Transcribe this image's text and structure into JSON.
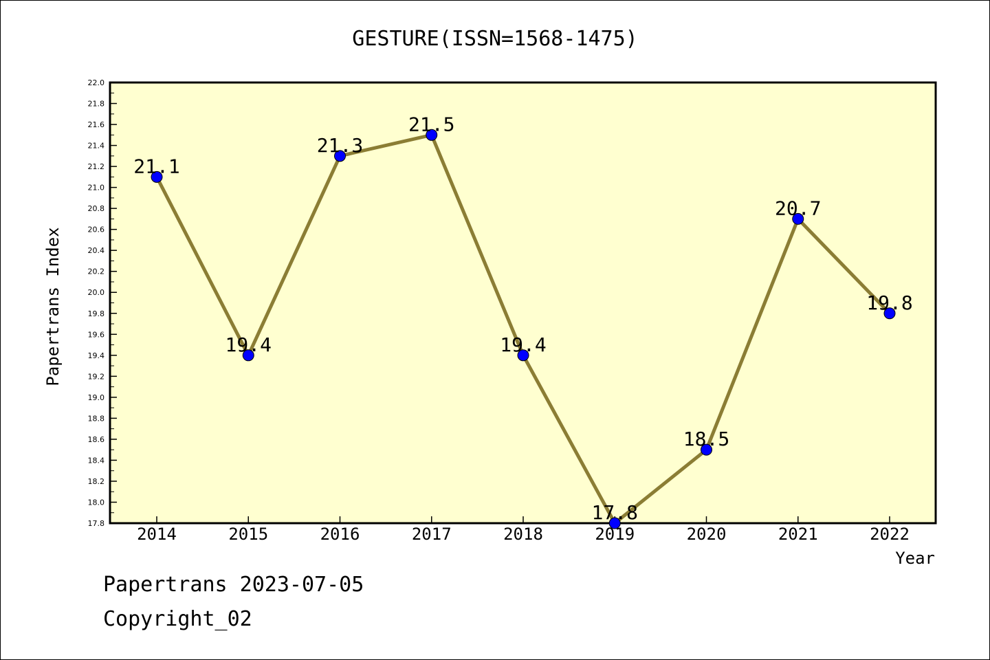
{
  "chart_data": {
    "type": "line",
    "title": "GESTURE(ISSN=1568-1475)",
    "xlabel": "Year",
    "ylabel": "Papertrans Index",
    "x": [
      "2014",
      "2015",
      "2016",
      "2017",
      "2018",
      "2019",
      "2020",
      "2021",
      "2022"
    ],
    "values": [
      21.1,
      19.4,
      21.3,
      21.5,
      19.4,
      17.8,
      18.5,
      20.7,
      19.8
    ],
    "data_labels": [
      "21.1",
      "19.4",
      "21.3",
      "21.5",
      "19.4",
      "17.8",
      "18.5",
      "20.7",
      "19.8"
    ],
    "ylim": [
      17.8,
      22.0
    ],
    "yticks": [
      "17.8",
      "18.0",
      "18.2",
      "18.4",
      "18.6",
      "18.8",
      "19.0",
      "19.2",
      "19.4",
      "19.6",
      "19.8",
      "20.0",
      "20.2",
      "20.4",
      "20.6",
      "20.8",
      "21.0",
      "21.2",
      "21.4",
      "21.6",
      "21.8",
      "22.0"
    ],
    "grid": false,
    "legend": "none",
    "colors": {
      "plot_background": "#ffffd0",
      "line": "#8b7d34",
      "marker": "#0000ff"
    }
  },
  "footer": {
    "date_line": "Papertrans 2023-07-05",
    "copyright": "Copyright_02"
  }
}
